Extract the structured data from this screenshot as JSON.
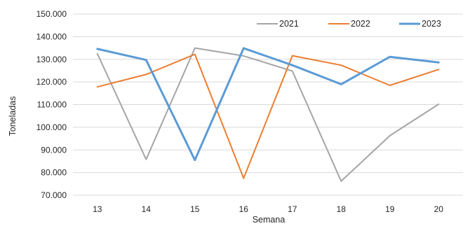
{
  "chart_data": {
    "type": "line",
    "title": "",
    "xlabel": "Semana",
    "ylabel": "Toneladas",
    "categories": [
      "13",
      "14",
      "15",
      "16",
      "17",
      "18",
      "19",
      "20"
    ],
    "ylim": [
      70000,
      150000
    ],
    "yticks": [
      70000,
      80000,
      90000,
      100000,
      110000,
      120000,
      130000,
      140000,
      150000
    ],
    "ytick_labels": [
      "70.000",
      "80.000",
      "90.000",
      "100.000",
      "110.000",
      "120.000",
      "130.000",
      "140.000",
      "150.000"
    ],
    "grid": true,
    "legend_position": "top-right",
    "series": [
      {
        "name": "2021",
        "color": "#a5a5a5",
        "values": [
          132500,
          85800,
          135000,
          131500,
          124800,
          76200,
          96300,
          110200
        ]
      },
      {
        "name": "2022",
        "color": "#ed7d31",
        "values": [
          117800,
          123300,
          132200,
          77500,
          131600,
          127400,
          118500,
          125500
        ]
      },
      {
        "name": "2023",
        "color": "#5b9bd5",
        "values": [
          134600,
          129700,
          85500,
          134900,
          127400,
          119000,
          131100,
          128600
        ]
      }
    ]
  }
}
